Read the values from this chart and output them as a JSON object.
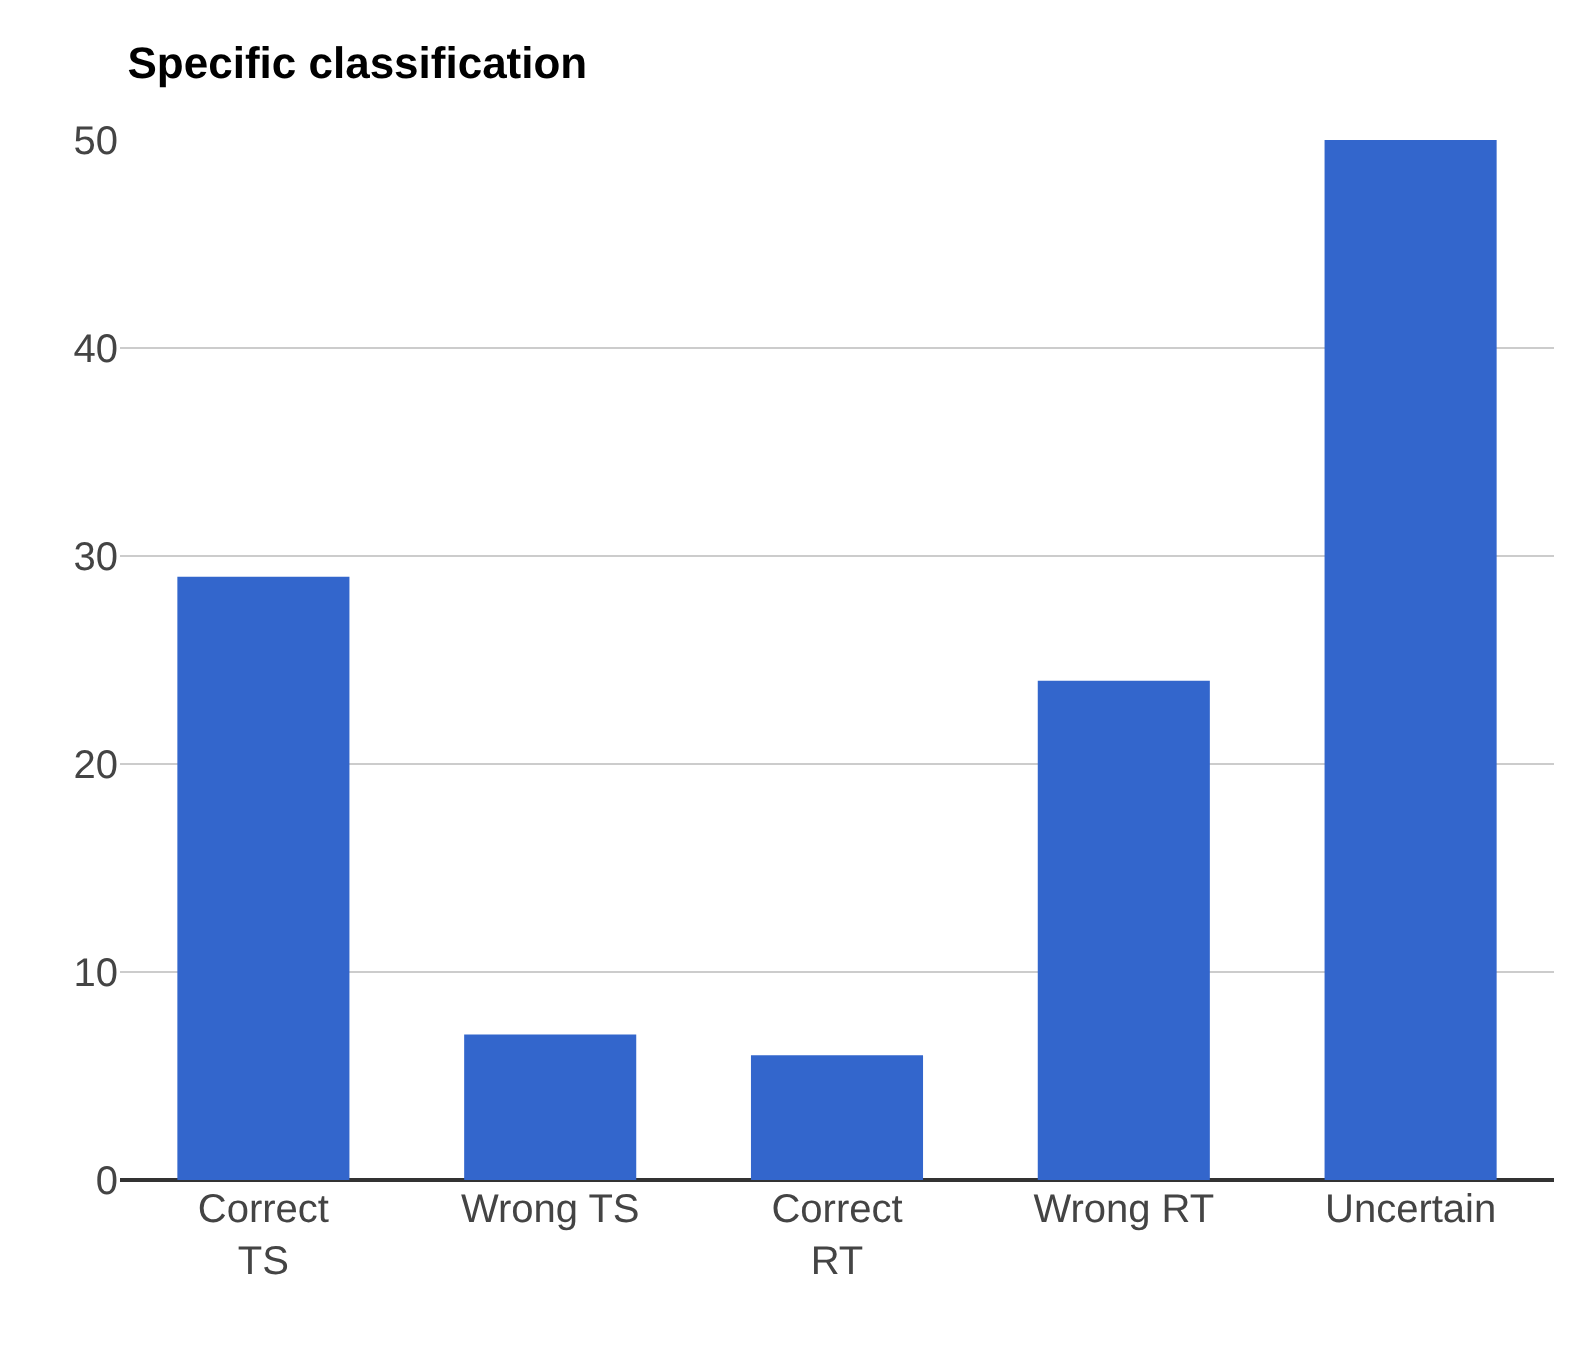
{
  "chart_data": {
    "type": "bar",
    "title": "Specific classification",
    "categories": [
      "Correct TS",
      "Wrong TS",
      "Correct RT",
      "Wrong RT",
      "Uncertain"
    ],
    "values": [
      29,
      7,
      6,
      24,
      50
    ],
    "color": "#3366cc",
    "ylim": [
      0,
      50
    ],
    "yticks": [
      0,
      10,
      20,
      30,
      40,
      50
    ],
    "grid": "y",
    "legend": false
  }
}
